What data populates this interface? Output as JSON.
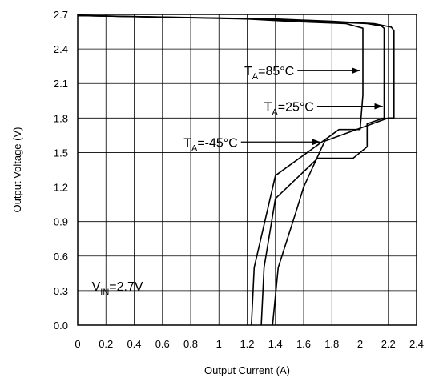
{
  "chart_data": {
    "type": "line",
    "title": "",
    "xlabel": "Output Current (A)",
    "ylabel": "Output Voltage (V)",
    "xlim": [
      0,
      2.4
    ],
    "ylim": [
      0,
      2.7
    ],
    "x_ticks": [
      0,
      0.2,
      0.4,
      0.6,
      0.8,
      1,
      1.2,
      1.4,
      1.6,
      1.8,
      2,
      2.2,
      2.4
    ],
    "x_tick_labels": [
      "0",
      "0.2",
      "0.4",
      "0.6",
      "0.8",
      "1",
      "1.2",
      "1.4",
      "1.6",
      "1.8",
      "2",
      "2.2",
      "2.4"
    ],
    "y_ticks": [
      0,
      0.3,
      0.6,
      0.9,
      1.2,
      1.5,
      1.8,
      2.1,
      2.4,
      2.7
    ],
    "y_tick_labels": [
      "0.0",
      "0.3",
      "0.6",
      "0.9",
      "1.2",
      "1.5",
      "1.8",
      "2.1",
      "2.4",
      "2.7"
    ],
    "grid": true,
    "series": [
      {
        "name": "TA=85°C",
        "x": [
          0,
          1.2,
          1.5,
          1.9,
          2.02,
          2.02,
          2.0,
          1.85,
          1.4,
          1.25,
          1.23
        ],
        "y": [
          2.69,
          2.66,
          2.64,
          2.62,
          2.58,
          2.0,
          1.7,
          1.7,
          1.3,
          0.5,
          0
        ]
      },
      {
        "name": "TA=25°C",
        "x": [
          0,
          1.3,
          1.7,
          2.05,
          2.15,
          2.17,
          2.17,
          2.05,
          2.05,
          1.95,
          1.7,
          1.4,
          1.32,
          1.3
        ],
        "y": [
          2.69,
          2.66,
          2.64,
          2.62,
          2.6,
          2.58,
          1.8,
          1.75,
          1.55,
          1.45,
          1.45,
          1.1,
          0.5,
          0
        ]
      },
      {
        "name": "TA=-45°C",
        "x": [
          0,
          1.4,
          1.8,
          2.1,
          2.22,
          2.24,
          2.24,
          2.2,
          1.75,
          1.6,
          1.55,
          1.42,
          1.38
        ],
        "y": [
          2.69,
          2.66,
          2.64,
          2.62,
          2.59,
          2.56,
          1.8,
          1.8,
          1.6,
          1.2,
          1.0,
          0.5,
          0
        ]
      }
    ],
    "annotations": [
      {
        "main": "T",
        "sub": "A",
        "rest": "=85°C",
        "text_x": 1.18,
        "text_y": 2.17,
        "arrow_to": [
          2.0,
          2.17
        ]
      },
      {
        "main": "T",
        "sub": "A",
        "rest": "=25°C",
        "text_x": 1.32,
        "text_y": 1.86,
        "arrow_to": [
          2.16,
          1.86
        ]
      },
      {
        "main": "T",
        "sub": "A",
        "rest": "=-45°C",
        "text_x": 0.75,
        "text_y": 1.55,
        "arrow_to": [
          1.72,
          1.55
        ]
      },
      {
        "main": "V",
        "sub": "IN",
        "rest": "=2.7V",
        "text_x": 0.1,
        "text_y": 0.3
      }
    ]
  }
}
